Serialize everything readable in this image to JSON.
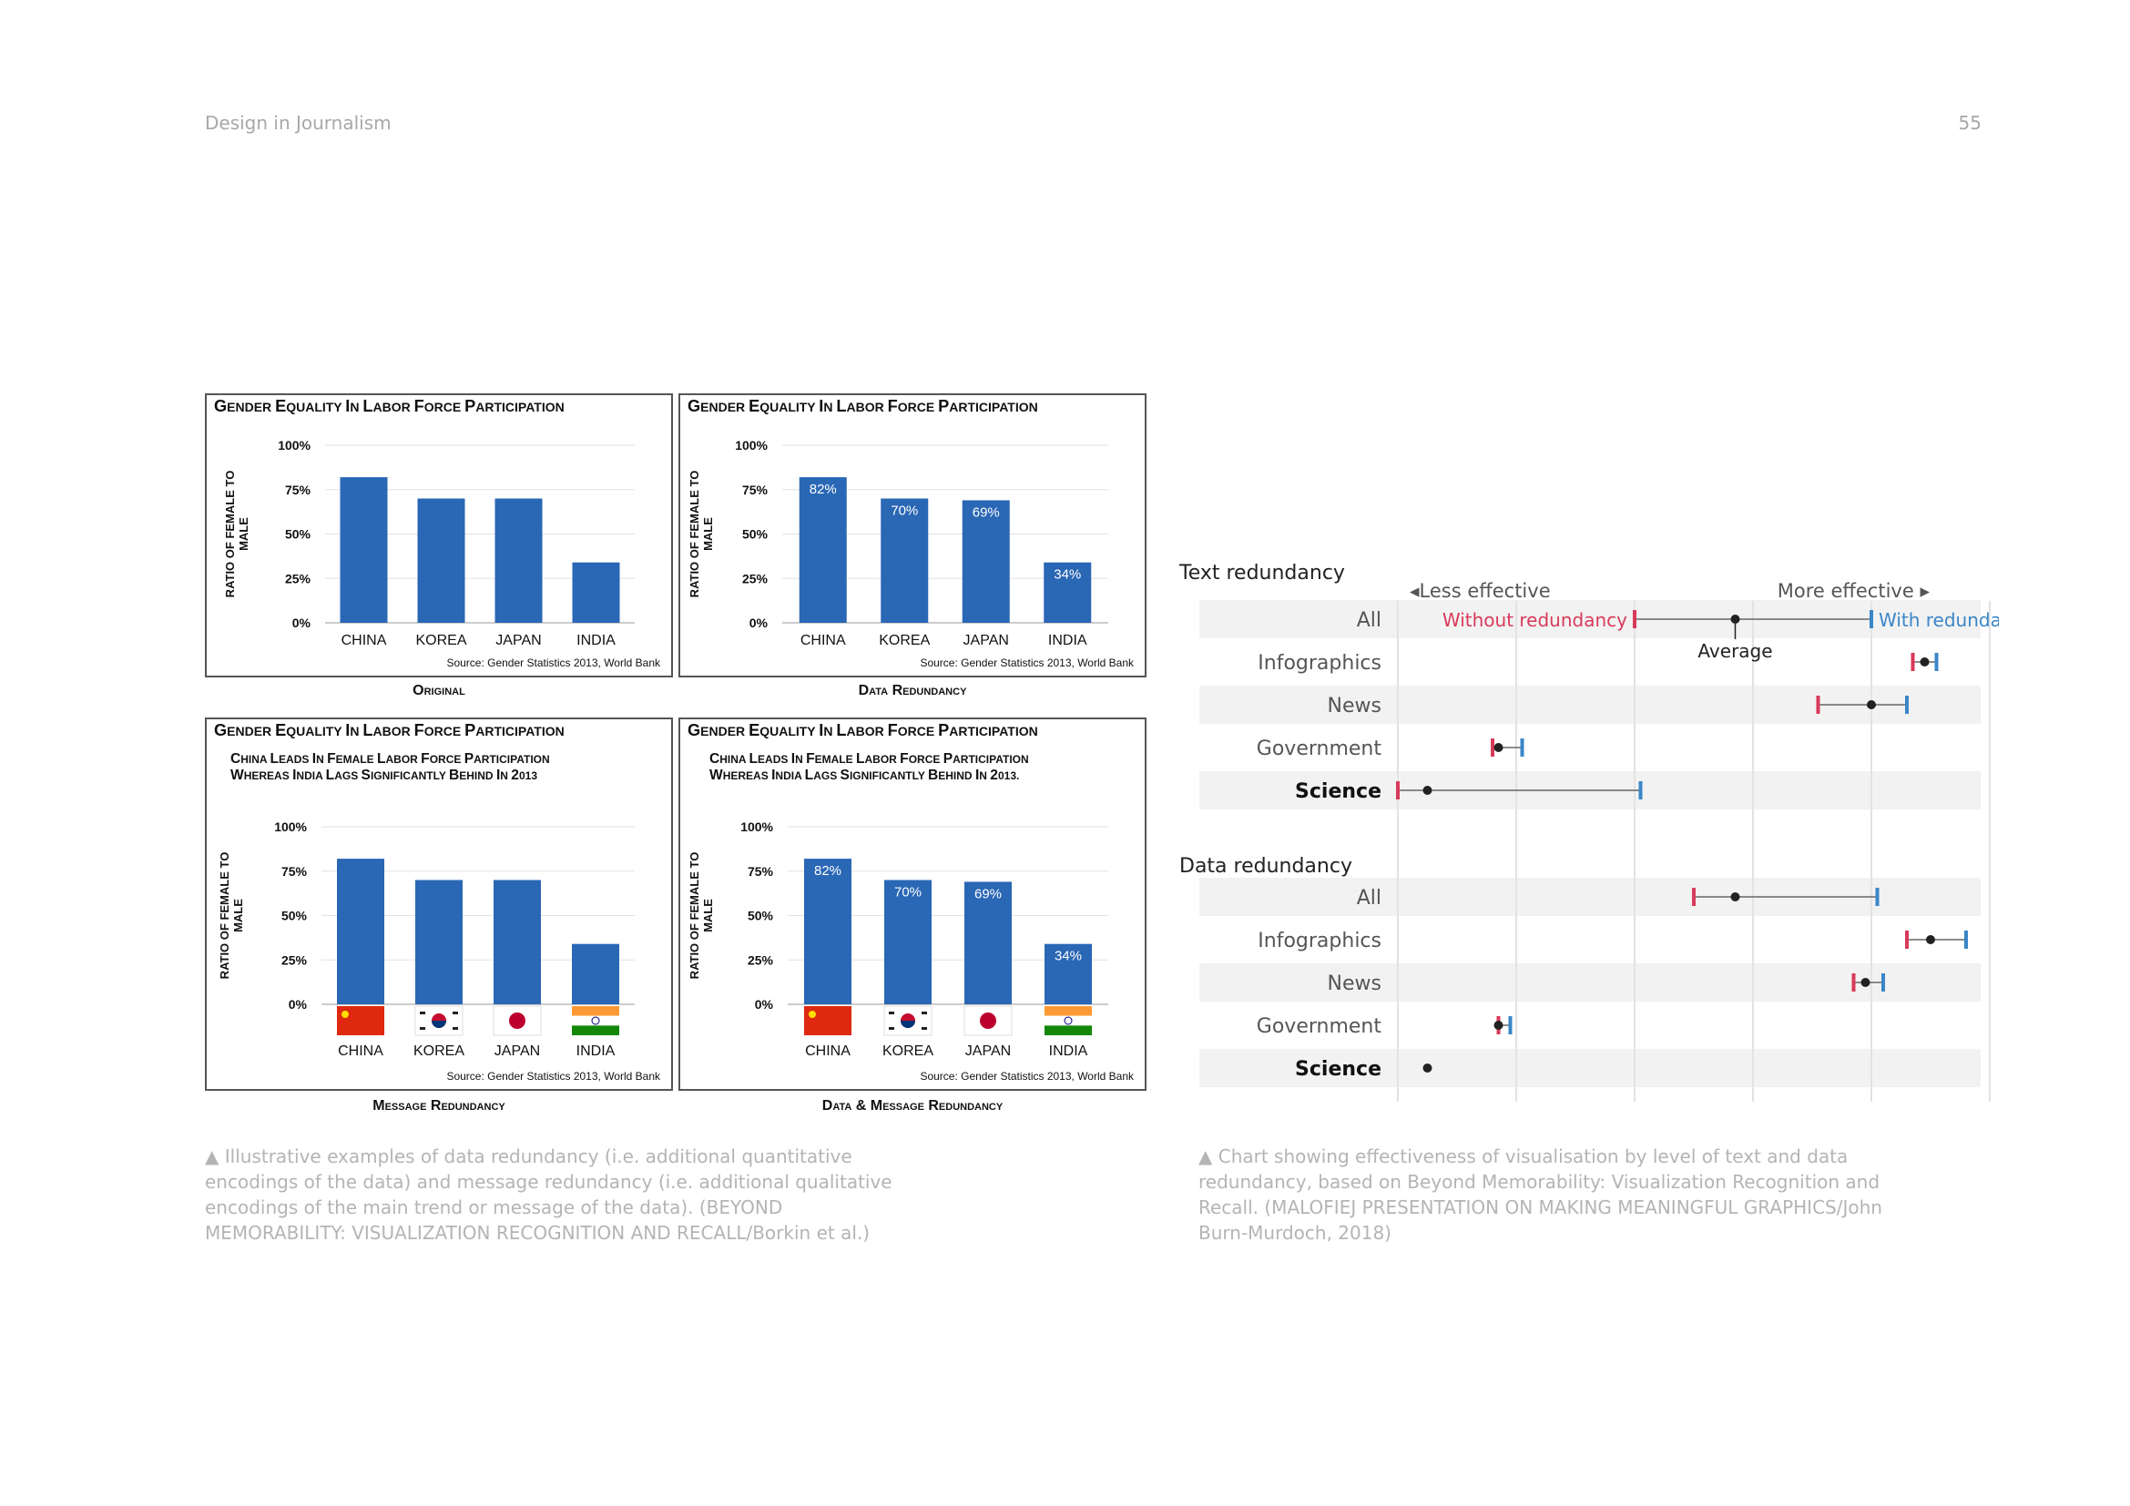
{
  "page": {
    "running_head": "Design in Journalism",
    "page_number": "55"
  },
  "bar_panels": {
    "chart_title": "Gender Equality in Labor Force Participation",
    "ylabel": "Ratio of Female to Male",
    "ytick_labels": [
      "0%",
      "25%",
      "50%",
      "75%",
      "100%"
    ],
    "source": "Source: Gender Statistics 2013, World Bank",
    "message_a": "China leads in female labor force participation whereas India lags significantly behind in 2013",
    "message_b": "China leads in female labor force participation whereas India lags significantly behind in 2013.",
    "captions": {
      "original": "Original",
      "data": "Data Redundancy",
      "message": "Message Redundancy",
      "data_message": "Data & Message Redundancy"
    },
    "bar_color": "#2a67b5"
  },
  "effect_chart": {
    "arrow_less": "◂Less effective",
    "arrow_more": "More effective ▸",
    "legend_without": "Without redundancy",
    "legend_with": "With redundancy",
    "legend_average": "Average",
    "colors": {
      "without": "#d83a5a",
      "with": "#3a86c8",
      "average": "#222222"
    },
    "sections": [
      {
        "title": "Text redundancy",
        "rows": [
          {
            "label": "All",
            "bold": false
          },
          {
            "label": "Infographics",
            "bold": false
          },
          {
            "label": "News",
            "bold": false
          },
          {
            "label": "Government",
            "bold": false
          },
          {
            "label": "Science",
            "bold": true
          }
        ]
      },
      {
        "title": "Data redundancy",
        "rows": [
          {
            "label": "All",
            "bold": false
          },
          {
            "label": "Infographics",
            "bold": false
          },
          {
            "label": "News",
            "bold": false
          },
          {
            "label": "Government",
            "bold": false
          },
          {
            "label": "Science",
            "bold": true
          }
        ]
      }
    ]
  },
  "chart_data": [
    {
      "type": "bar",
      "title": "Gender Equality in Labor Force Participation",
      "ylabel": "Ratio of Female to Male",
      "categories": [
        "CHINA",
        "KOREA",
        "JAPAN",
        "INDIA"
      ],
      "values": [
        82,
        70,
        70,
        34
      ],
      "ylim": [
        0,
        100
      ],
      "variant": "Original"
    },
    {
      "type": "bar",
      "title": "Gender Equality in Labor Force Participation",
      "ylabel": "Ratio of Female to Male",
      "categories": [
        "CHINA",
        "KOREA",
        "JAPAN",
        "INDIA"
      ],
      "values": [
        82,
        70,
        69,
        34
      ],
      "data_labels": [
        "82%",
        "70%",
        "69%",
        "34%"
      ],
      "ylim": [
        0,
        100
      ],
      "variant": "Data Redundancy"
    },
    {
      "type": "bar",
      "title": "Gender Equality in Labor Force Participation",
      "ylabel": "Ratio of Female to Male",
      "categories": [
        "CHINA",
        "KOREA",
        "JAPAN",
        "INDIA"
      ],
      "values": [
        82,
        70,
        70,
        34
      ],
      "ylim": [
        0,
        100
      ],
      "variant": "Message Redundancy",
      "flags": true
    },
    {
      "type": "bar",
      "title": "Gender Equality in Labor Force Participation",
      "ylabel": "Ratio of Female to Male",
      "categories": [
        "CHINA",
        "KOREA",
        "JAPAN",
        "INDIA"
      ],
      "values": [
        82,
        70,
        69,
        34
      ],
      "data_labels": [
        "82%",
        "70%",
        "69%",
        "34%"
      ],
      "ylim": [
        0,
        100
      ],
      "variant": "Data & Message Redundancy",
      "flags": true
    },
    {
      "type": "scatter",
      "subtype": "dumbbell",
      "x_scale": "relative effectiveness (unlabelled)",
      "xlim": [
        0,
        100
      ],
      "series": [
        {
          "name": "Without redundancy",
          "section": "Text redundancy",
          "values": [
            40,
            87,
            71,
            16,
            0
          ]
        },
        {
          "name": "Average",
          "section": "Text redundancy",
          "values": [
            57,
            89,
            80,
            17,
            5
          ]
        },
        {
          "name": "With redundancy",
          "section": "Text redundancy",
          "values": [
            80,
            91,
            86,
            21,
            41
          ]
        },
        {
          "name": "Without redundancy",
          "section": "Data redundancy",
          "values": [
            50,
            86,
            77,
            17,
            null
          ]
        },
        {
          "name": "Average",
          "section": "Data redundancy",
          "values": [
            57,
            90,
            79,
            17,
            5
          ]
        },
        {
          "name": "With redundancy",
          "section": "Data redundancy",
          "values": [
            81,
            96,
            82,
            19,
            null
          ]
        }
      ],
      "categories": [
        "All",
        "Infographics",
        "News",
        "Government",
        "Science"
      ]
    }
  ],
  "captions": {
    "left": "▲ Illustrative examples of data redundancy (i.e. additional quantitative encodings of the data) and message redundancy (i.e. additional qualitative encodings of the main trend or message of the data). (BEYOND MEMORABILITY: VISUALIZATION RECOGNITION AND RECALL/Borkin et al.)",
    "right": "▲ Chart showing effectiveness of visualisation by level of text and data redundancy, based on Beyond Memorability: Visualization Recognition and Recall. (MALOFIEJ PRESENTATION ON MAKING MEANINGFUL GRAPHICS/John Burn-Murdoch, 2018)"
  }
}
